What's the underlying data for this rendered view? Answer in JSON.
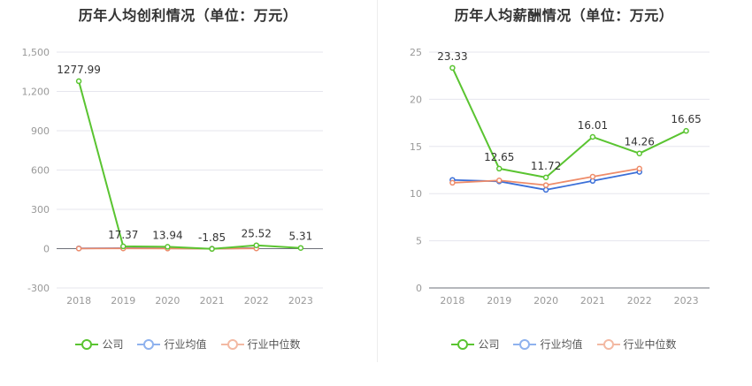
{
  "chart_data": [
    {
      "type": "line",
      "title": "历年人均创利情况（单位：万元）",
      "categories": [
        "2018",
        "2019",
        "2020",
        "2021",
        "2022",
        "2023"
      ],
      "ylim": [
        -300,
        1500
      ],
      "yticks": [
        -300,
        0,
        300,
        600,
        900,
        1200,
        1500
      ],
      "ytick_labels": [
        "-300",
        "0",
        "300",
        "600",
        "900",
        "1,200",
        "1,500"
      ],
      "series": [
        {
          "name": "公司",
          "color": "#5ac431",
          "values": [
            1277.99,
            17.37,
            13.94,
            -1.85,
            25.52,
            5.31
          ],
          "labels": [
            "1277.99",
            "17.37",
            "13.94",
            "-1.85",
            "25.52",
            "5.31"
          ]
        },
        {
          "name": "行业均值",
          "color": "#3b6fd8",
          "values": [
            2,
            4,
            3,
            0,
            4,
            null
          ]
        },
        {
          "name": "行业中位数",
          "color": "#ee8c6a",
          "values": [
            1,
            2,
            1,
            -1,
            2,
            null
          ]
        }
      ],
      "legend_position": "bottom",
      "grid": true
    },
    {
      "type": "line",
      "title": "历年人均薪酬情况（单位：万元）",
      "categories": [
        "2018",
        "2019",
        "2020",
        "2021",
        "2022",
        "2023"
      ],
      "ylim": [
        0,
        25
      ],
      "yticks": [
        0,
        5,
        10,
        15,
        20,
        25
      ],
      "ytick_labels": [
        "0",
        "5",
        "10",
        "15",
        "20",
        "25"
      ],
      "series": [
        {
          "name": "公司",
          "color": "#5ac431",
          "values": [
            23.33,
            12.65,
            11.72,
            16.01,
            14.26,
            16.65
          ],
          "labels": [
            "23.33",
            "12.65",
            "11.72",
            "16.01",
            "14.26",
            "16.65"
          ]
        },
        {
          "name": "行业均值",
          "color": "#3b6fd8",
          "values": [
            11.45,
            11.3,
            10.4,
            11.35,
            12.3,
            null
          ]
        },
        {
          "name": "行业中位数",
          "color": "#ee8c6a",
          "values": [
            11.15,
            11.4,
            10.9,
            11.8,
            12.65,
            null
          ]
        }
      ],
      "legend_position": "bottom",
      "grid": true
    }
  ],
  "legend": [
    {
      "name": "公司",
      "color": "#5ac431"
    },
    {
      "name": "行业均值",
      "color": "#8fb2ee"
    },
    {
      "name": "行业中位数",
      "color": "#f3b9a3"
    }
  ]
}
